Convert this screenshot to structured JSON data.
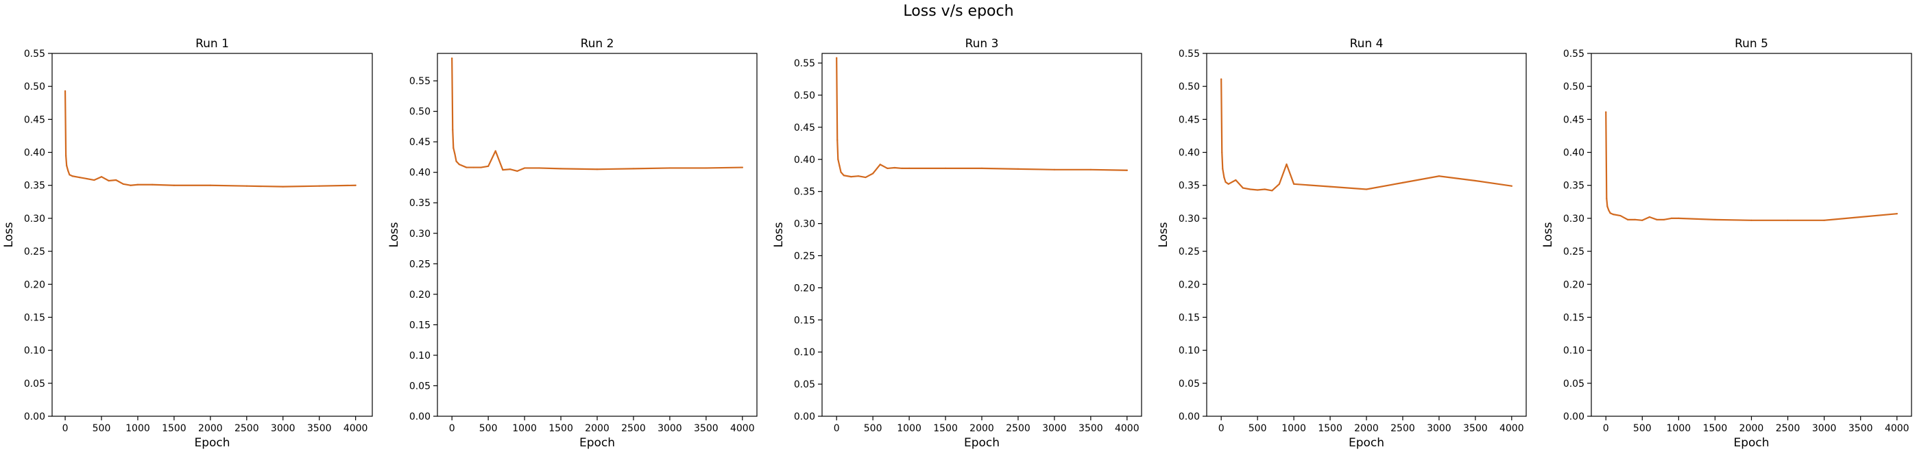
{
  "figure": {
    "title": "Loss v/s epoch"
  },
  "style": {
    "line_color": "#d2691e",
    "axis_color": "#000000",
    "background": "#ffffff"
  },
  "chart_data": [
    {
      "type": "line",
      "title": "Run 1",
      "xlabel": "Epoch",
      "ylabel": "Loss",
      "xlim": [
        -180,
        4230
      ],
      "ylim": [
        0,
        0.55
      ],
      "xticks": [
        0,
        500,
        1000,
        1500,
        2000,
        2500,
        3000,
        3500,
        4000
      ],
      "yticks": [
        0.0,
        0.05,
        0.1,
        0.15,
        0.2,
        0.25,
        0.3,
        0.35,
        0.4,
        0.45,
        0.5,
        0.55
      ],
      "ytick_decimals": 2,
      "grid": false,
      "series": [
        {
          "x": [
            0,
            10,
            20,
            40,
            60,
            100,
            200,
            300,
            400,
            500,
            600,
            700,
            800,
            900,
            1000,
            1200,
            1500,
            2000,
            2500,
            3000,
            3500,
            4000
          ],
          "y": [
            0.493,
            0.395,
            0.38,
            0.372,
            0.366,
            0.364,
            0.362,
            0.36,
            0.358,
            0.363,
            0.357,
            0.358,
            0.352,
            0.35,
            0.351,
            0.351,
            0.35,
            0.35,
            0.349,
            0.348,
            0.349,
            0.35
          ]
        }
      ]
    },
    {
      "type": "line",
      "title": "Run 2",
      "xlabel": "Epoch",
      "ylabel": "Loss",
      "xlim": [
        -200,
        4200
      ],
      "ylim": [
        0,
        0.595
      ],
      "xticks": [
        0,
        500,
        1000,
        1500,
        2000,
        2500,
        3000,
        3500,
        4000
      ],
      "yticks": [
        0.0,
        0.05,
        0.1,
        0.15,
        0.2,
        0.25,
        0.3,
        0.35,
        0.4,
        0.45,
        0.5,
        0.55
      ],
      "ytick_decimals": 2,
      "grid": false,
      "series": [
        {
          "x": [
            0,
            10,
            20,
            40,
            60,
            100,
            200,
            300,
            400,
            500,
            600,
            700,
            800,
            900,
            1000,
            1200,
            1500,
            2000,
            2500,
            3000,
            3500,
            4000
          ],
          "y": [
            0.587,
            0.47,
            0.44,
            0.43,
            0.418,
            0.413,
            0.408,
            0.408,
            0.408,
            0.41,
            0.435,
            0.404,
            0.405,
            0.402,
            0.407,
            0.407,
            0.406,
            0.405,
            0.406,
            0.407,
            0.407,
            0.408
          ]
        }
      ]
    },
    {
      "type": "line",
      "title": "Run 3",
      "xlabel": "Epoch",
      "ylabel": "Loss",
      "xlim": [
        -200,
        4200
      ],
      "ylim": [
        0,
        0.565
      ],
      "xticks": [
        0,
        500,
        1000,
        1500,
        2000,
        2500,
        3000,
        3500,
        4000
      ],
      "yticks": [
        0.0,
        0.05,
        0.1,
        0.15,
        0.2,
        0.25,
        0.3,
        0.35,
        0.4,
        0.45,
        0.5,
        0.55
      ],
      "ytick_decimals": 2,
      "grid": false,
      "series": [
        {
          "x": [
            0,
            10,
            20,
            40,
            60,
            100,
            200,
            300,
            400,
            500,
            600,
            700,
            800,
            900,
            1000,
            1500,
            2000,
            2500,
            3000,
            3500,
            4000
          ],
          "y": [
            0.558,
            0.43,
            0.4,
            0.39,
            0.38,
            0.375,
            0.373,
            0.374,
            0.372,
            0.378,
            0.392,
            0.386,
            0.387,
            0.386,
            0.386,
            0.386,
            0.386,
            0.385,
            0.384,
            0.384,
            0.383
          ]
        }
      ]
    },
    {
      "type": "line",
      "title": "Run 4",
      "xlabel": "Epoch",
      "ylabel": "Loss",
      "xlim": [
        -200,
        4200
      ],
      "ylim": [
        0,
        0.55
      ],
      "xticks": [
        0,
        500,
        1000,
        1500,
        2000,
        2500,
        3000,
        3500,
        4000
      ],
      "yticks": [
        0.0,
        0.05,
        0.1,
        0.15,
        0.2,
        0.25,
        0.3,
        0.35,
        0.4,
        0.45,
        0.5,
        0.55
      ],
      "ytick_decimals": 2,
      "grid": false,
      "series": [
        {
          "x": [
            0,
            10,
            20,
            40,
            60,
            100,
            200,
            300,
            400,
            500,
            600,
            700,
            800,
            900,
            1000,
            1500,
            2000,
            2500,
            3000,
            3500,
            4000
          ],
          "y": [
            0.511,
            0.4,
            0.375,
            0.362,
            0.355,
            0.352,
            0.358,
            0.346,
            0.344,
            0.343,
            0.344,
            0.342,
            0.352,
            0.382,
            0.352,
            0.348,
            0.344,
            0.354,
            0.364,
            0.357,
            0.349
          ]
        }
      ]
    },
    {
      "type": "line",
      "title": "Run 5",
      "xlabel": "Epoch",
      "ylabel": "Loss",
      "xlim": [
        -200,
        4200
      ],
      "ylim": [
        0,
        0.55
      ],
      "xticks": [
        0,
        500,
        1000,
        1500,
        2000,
        2500,
        3000,
        3500,
        4000
      ],
      "yticks": [
        0.0,
        0.05,
        0.1,
        0.15,
        0.2,
        0.25,
        0.3,
        0.35,
        0.4,
        0.45,
        0.5,
        0.55
      ],
      "ytick_decimals": 2,
      "grid": false,
      "series": [
        {
          "x": [
            0,
            10,
            20,
            40,
            60,
            100,
            200,
            300,
            400,
            500,
            600,
            700,
            800,
            900,
            1000,
            1500,
            2000,
            2500,
            3000,
            3500,
            4000
          ],
          "y": [
            0.461,
            0.33,
            0.318,
            0.312,
            0.308,
            0.306,
            0.304,
            0.298,
            0.298,
            0.297,
            0.302,
            0.298,
            0.298,
            0.3,
            0.3,
            0.298,
            0.297,
            0.297,
            0.297,
            0.302,
            0.307
          ]
        }
      ]
    }
  ]
}
